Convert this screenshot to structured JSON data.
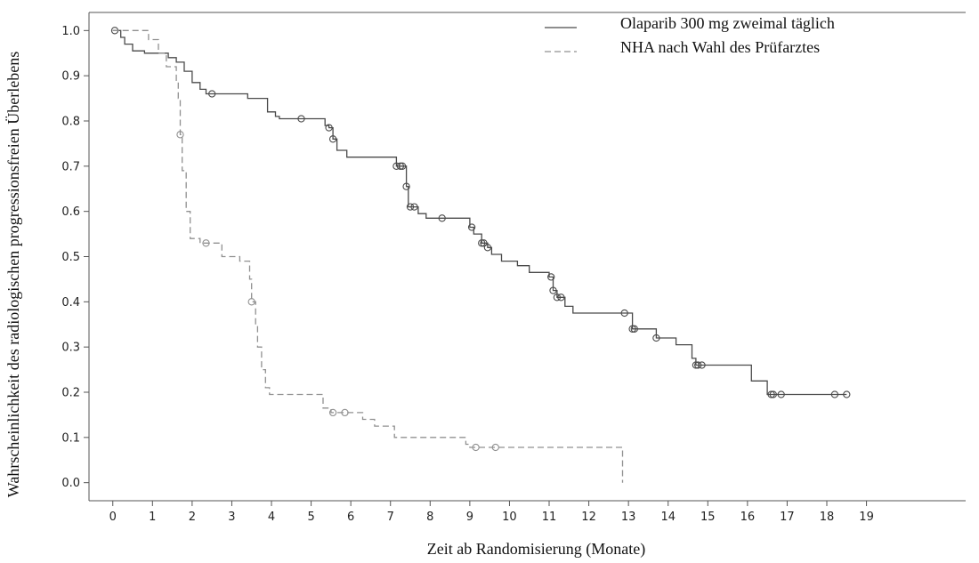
{
  "chart_data": {
    "type": "line",
    "title": "",
    "xlabel": "Zeit ab Randomisierung (Monate)",
    "ylabel": "Wahrscheinlichkeit des radiologischen progressionsfreien Überlebens",
    "xlim": [
      -0.6,
      21.5
    ],
    "ylim": [
      -0.04,
      1.04
    ],
    "xticks": [
      0,
      1,
      2,
      3,
      4,
      5,
      6,
      7,
      8,
      9,
      10,
      11,
      12,
      13,
      14,
      15,
      16,
      17,
      18,
      19
    ],
    "yticks": [
      "0.0",
      "0.1",
      "0.2",
      "0.3",
      "0.4",
      "0.5",
      "0.6",
      "0.7",
      "0.8",
      "0.9",
      "1.0"
    ],
    "legend_position": "top-right",
    "grid": false,
    "series": [
      {
        "name": "Olaparib 300 mg zweimal täglich",
        "style": "solid",
        "color": "#4a4a4a",
        "steps": [
          [
            0,
            1.0
          ],
          [
            0.2,
            0.985
          ],
          [
            0.3,
            0.97
          ],
          [
            0.5,
            0.955
          ],
          [
            0.8,
            0.95
          ],
          [
            1.4,
            0.94
          ],
          [
            1.6,
            0.93
          ],
          [
            1.8,
            0.91
          ],
          [
            2.0,
            0.885
          ],
          [
            2.2,
            0.87
          ],
          [
            2.35,
            0.86
          ],
          [
            3.4,
            0.85
          ],
          [
            3.9,
            0.82
          ],
          [
            4.1,
            0.81
          ],
          [
            4.2,
            0.805
          ],
          [
            5.35,
            0.79
          ],
          [
            5.45,
            0.785
          ],
          [
            5.55,
            0.76
          ],
          [
            5.65,
            0.735
          ],
          [
            5.9,
            0.72
          ],
          [
            7.15,
            0.7
          ],
          [
            7.4,
            0.655
          ],
          [
            7.45,
            0.61
          ],
          [
            7.7,
            0.595
          ],
          [
            7.9,
            0.585
          ],
          [
            9.0,
            0.565
          ],
          [
            9.1,
            0.55
          ],
          [
            9.3,
            0.53
          ],
          [
            9.45,
            0.52
          ],
          [
            9.55,
            0.505
          ],
          [
            9.8,
            0.49
          ],
          [
            10.2,
            0.48
          ],
          [
            10.5,
            0.465
          ],
          [
            11.0,
            0.455
          ],
          [
            11.1,
            0.425
          ],
          [
            11.2,
            0.41
          ],
          [
            11.4,
            0.39
          ],
          [
            11.6,
            0.375
          ],
          [
            13.1,
            0.34
          ],
          [
            13.7,
            0.32
          ],
          [
            14.2,
            0.305
          ],
          [
            14.6,
            0.275
          ],
          [
            14.7,
            0.26
          ],
          [
            15.4,
            0.26
          ],
          [
            16.1,
            0.225
          ],
          [
            16.5,
            0.195
          ],
          [
            18.5,
            0.195
          ]
        ],
        "censored_x": [
          0.05,
          2.5,
          4.75,
          5.45,
          5.55,
          7.15,
          7.25,
          7.3,
          7.4,
          7.5,
          7.6,
          8.3,
          9.05,
          9.3,
          9.35,
          9.45,
          11.05,
          11.1,
          11.2,
          11.3,
          12.9,
          13.1,
          13.15,
          13.7,
          14.7,
          14.75,
          14.85,
          16.6,
          16.65,
          16.85,
          18.2,
          18.5
        ]
      },
      {
        "name": "NHA nach Wahl des Prüfarztes",
        "style": "dashed",
        "color": "#909090",
        "steps": [
          [
            0,
            1.0
          ],
          [
            0.9,
            0.98
          ],
          [
            1.15,
            0.95
          ],
          [
            1.35,
            0.92
          ],
          [
            1.6,
            0.89
          ],
          [
            1.65,
            0.85
          ],
          [
            1.7,
            0.77
          ],
          [
            1.75,
            0.69
          ],
          [
            1.85,
            0.6
          ],
          [
            1.95,
            0.54
          ],
          [
            2.2,
            0.53
          ],
          [
            2.75,
            0.5
          ],
          [
            3.2,
            0.49
          ],
          [
            3.45,
            0.45
          ],
          [
            3.5,
            0.4
          ],
          [
            3.6,
            0.35
          ],
          [
            3.65,
            0.3
          ],
          [
            3.75,
            0.25
          ],
          [
            3.85,
            0.21
          ],
          [
            3.95,
            0.195
          ],
          [
            5.3,
            0.165
          ],
          [
            5.5,
            0.155
          ],
          [
            6.3,
            0.14
          ],
          [
            6.6,
            0.125
          ],
          [
            7.1,
            0.1
          ],
          [
            8.9,
            0.085
          ],
          [
            9.0,
            0.078
          ],
          [
            12.85,
            0.078
          ],
          [
            12.85,
            0.0
          ]
        ],
        "censored_x": [
          1.7,
          2.35,
          3.5,
          5.55,
          5.85,
          9.15,
          9.65
        ]
      }
    ]
  }
}
